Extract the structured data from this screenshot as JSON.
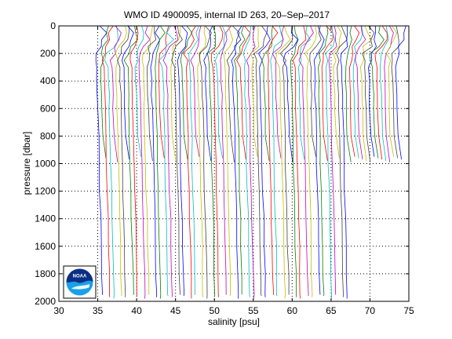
{
  "chart_data": {
    "type": "line",
    "title": "WMO ID 4900095, internal ID 263, 20–Sep–2017",
    "xlabel": "salinity [psu]",
    "ylabel": "pressure [dbar]",
    "xlim": [
      30,
      75
    ],
    "ylim": [
      2000,
      0
    ],
    "y_reversed": true,
    "grid": true,
    "x_ticks": [
      "30",
      "35",
      "40",
      "45",
      "50",
      "55",
      "60",
      "65",
      "70",
      "75"
    ],
    "y_ticks": [
      "0",
      "200",
      "400",
      "600",
      "800",
      "1000",
      "1200",
      "1400",
      "1600",
      "1800",
      "2000"
    ],
    "profile_offset_psu": 0.5,
    "profile_count": 78,
    "first_profile_base_psu": 34.8,
    "profile_shape": {
      "pressure": [
        0,
        50,
        100,
        150,
        200,
        250,
        300,
        400,
        500,
        600,
        800,
        1000,
        1200,
        1400,
        1600,
        1800,
        1950
      ],
      "salinity_anomaly": [
        0.9,
        1.0,
        1.1,
        0.6,
        0.1,
        0.0,
        0.05,
        0.1,
        0.15,
        0.2,
        0.3,
        0.35,
        0.45,
        0.55,
        0.62,
        0.7,
        0.75
      ]
    },
    "profile_colors": [
      "#0000ff",
      "#008000",
      "#ff0000",
      "#00bfbf",
      "#bf00bf",
      "#bfbf00",
      "#404040"
    ],
    "logo_text": "NOAA"
  }
}
